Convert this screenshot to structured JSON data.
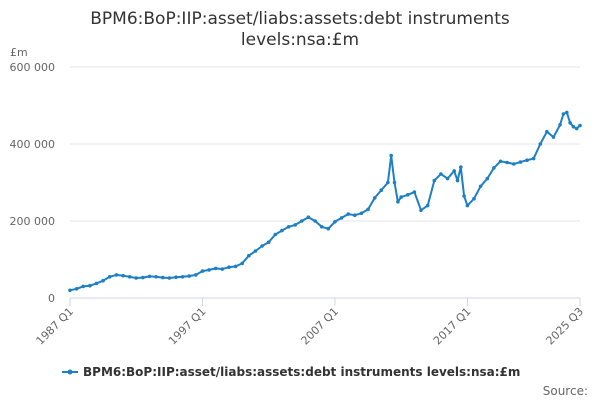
{
  "chart_data": {
    "type": "line",
    "title_lines": [
      "BPM6:BoP:IIP:asset/liabs:assets:debt instruments",
      "levels:nsa:£m"
    ],
    "y_unit": "£m",
    "ylim": [
      0,
      600000
    ],
    "y_ticks": [
      0,
      200000,
      400000,
      600000
    ],
    "y_tick_labels": [
      "0",
      "200 000",
      "400 000",
      "600 000"
    ],
    "x_tick_labels": [
      "1987 Q1",
      "1997 Q1",
      "2007 Q1",
      "2017 Q1",
      "2025 Q3"
    ],
    "x_tick_years": [
      1987.0,
      1997.0,
      2007.0,
      2017.0,
      2025.5
    ],
    "xlim": [
      1987.0,
      2025.5
    ],
    "grid": "horizontal",
    "legend_position": "bottom",
    "source_label": "Source:",
    "colors": {
      "series": "#1f7fc4",
      "grid": "#e5e5e5",
      "axis": "#ccd6eb"
    },
    "series": [
      {
        "name": "BPM6:BoP:IIP:asset/liabs:assets:debt instruments levels:nsa:£m",
        "points": [
          [
            "1987 Q1",
            20000
          ],
          [
            "1987 Q3",
            24000
          ],
          [
            "1988 Q1",
            30000
          ],
          [
            "1988 Q3",
            32000
          ],
          [
            "1989 Q1",
            38000
          ],
          [
            "1989 Q3",
            45000
          ],
          [
            "1990 Q1",
            55000
          ],
          [
            "1990 Q3",
            60000
          ],
          [
            "1991 Q1",
            58000
          ],
          [
            "1991 Q3",
            55000
          ],
          [
            "1992 Q1",
            52000
          ],
          [
            "1992 Q3",
            53000
          ],
          [
            "1993 Q1",
            56000
          ],
          [
            "1993 Q3",
            55000
          ],
          [
            "1994 Q1",
            53000
          ],
          [
            "1994 Q3",
            52000
          ],
          [
            "1995 Q1",
            54000
          ],
          [
            "1995 Q3",
            55000
          ],
          [
            "1996 Q1",
            57000
          ],
          [
            "1996 Q3",
            60000
          ],
          [
            "1997 Q1",
            70000
          ],
          [
            "1997 Q3",
            73000
          ],
          [
            "1998 Q1",
            77000
          ],
          [
            "1998 Q3",
            75000
          ],
          [
            "1999 Q1",
            80000
          ],
          [
            "1999 Q3",
            82000
          ],
          [
            "2000 Q1",
            90000
          ],
          [
            "2000 Q3",
            110000
          ],
          [
            "2001 Q1",
            122000
          ],
          [
            "2001 Q3",
            135000
          ],
          [
            "2002 Q1",
            145000
          ],
          [
            "2002 Q3",
            165000
          ],
          [
            "2003 Q1",
            175000
          ],
          [
            "2003 Q3",
            185000
          ],
          [
            "2004 Q1",
            190000
          ],
          [
            "2004 Q3",
            200000
          ],
          [
            "2005 Q1",
            210000
          ],
          [
            "2005 Q3",
            200000
          ],
          [
            "2006 Q1",
            185000
          ],
          [
            "2006 Q3",
            180000
          ],
          [
            "2007 Q1",
            198000
          ],
          [
            "2007 Q3",
            208000
          ],
          [
            "2008 Q1",
            218000
          ],
          [
            "2008 Q3",
            215000
          ],
          [
            "2009 Q1",
            220000
          ],
          [
            "2009 Q3",
            230000
          ],
          [
            "2010 Q1",
            260000
          ],
          [
            "2010 Q3",
            280000
          ],
          [
            "2011 Q1",
            300000
          ],
          [
            "2011 Q2",
            370000
          ],
          [
            "2011 Q3",
            300000
          ],
          [
            "2011 Q4",
            250000
          ],
          [
            "2012 Q1",
            262000
          ],
          [
            "2012 Q3",
            268000
          ],
          [
            "2013 Q1",
            275000
          ],
          [
            "2013 Q3",
            228000
          ],
          [
            "2014 Q1",
            240000
          ],
          [
            "2014 Q3",
            305000
          ],
          [
            "2015 Q1",
            322000
          ],
          [
            "2015 Q3",
            310000
          ],
          [
            "2016 Q1",
            330000
          ],
          [
            "2016 Q2",
            305000
          ],
          [
            "2016 Q3",
            340000
          ],
          [
            "2016 Q4",
            265000
          ],
          [
            "2017 Q1",
            240000
          ],
          [
            "2017 Q3",
            258000
          ],
          [
            "2018 Q1",
            290000
          ],
          [
            "2018 Q3",
            310000
          ],
          [
            "2019 Q1",
            338000
          ],
          [
            "2019 Q3",
            355000
          ],
          [
            "2020 Q1",
            352000
          ],
          [
            "2020 Q3",
            348000
          ],
          [
            "2021 Q1",
            353000
          ],
          [
            "2021 Q3",
            358000
          ],
          [
            "2022 Q1",
            362000
          ],
          [
            "2022 Q3",
            400000
          ],
          [
            "2023 Q1",
            432000
          ],
          [
            "2023 Q3",
            418000
          ],
          [
            "2024 Q1",
            450000
          ],
          [
            "2024 Q2",
            478000
          ],
          [
            "2024 Q3",
            482000
          ],
          [
            "2024 Q4",
            455000
          ],
          [
            "2025 Q1",
            445000
          ],
          [
            "2025 Q2",
            440000
          ],
          [
            "2025 Q3",
            448000
          ]
        ]
      }
    ]
  }
}
